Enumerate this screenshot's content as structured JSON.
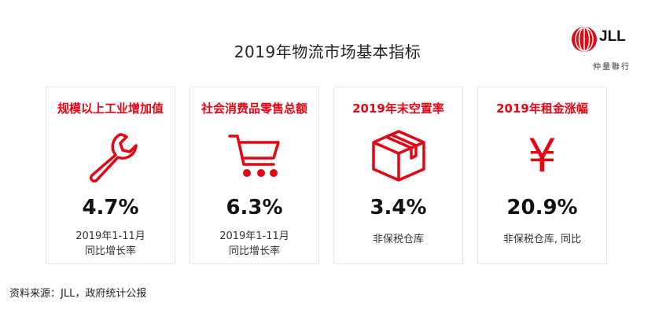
{
  "header": {
    "title": "2019年物流市场基本指标"
  },
  "logo": {
    "text": "JLL",
    "subtitle": "仲量聯行"
  },
  "accent_color": "#e30613",
  "cards": [
    {
      "title": "规模以上工业增加值",
      "icon": "wrench-icon",
      "value": "4.7%",
      "note_line1": "2019年1-11月",
      "note_line2": "同比增长率"
    },
    {
      "title": "社会消费品零售总额",
      "icon": "shopping-cart-icon",
      "value": "6.3%",
      "note_line1": "2019年1-11月",
      "note_line2": "同比增长率"
    },
    {
      "title": "2019年末空置率",
      "icon": "box-icon",
      "value": "3.4%",
      "note_line1": "非保税仓库",
      "note_line2": ""
    },
    {
      "title": "2019年租金涨幅",
      "icon": "yen-icon",
      "icon_glyph": "¥",
      "value": "20.9%",
      "note_line1": "非保税仓库, 同比",
      "note_line2": ""
    }
  ],
  "footer": {
    "source": "资料来源：JLL，政府统计公报"
  }
}
